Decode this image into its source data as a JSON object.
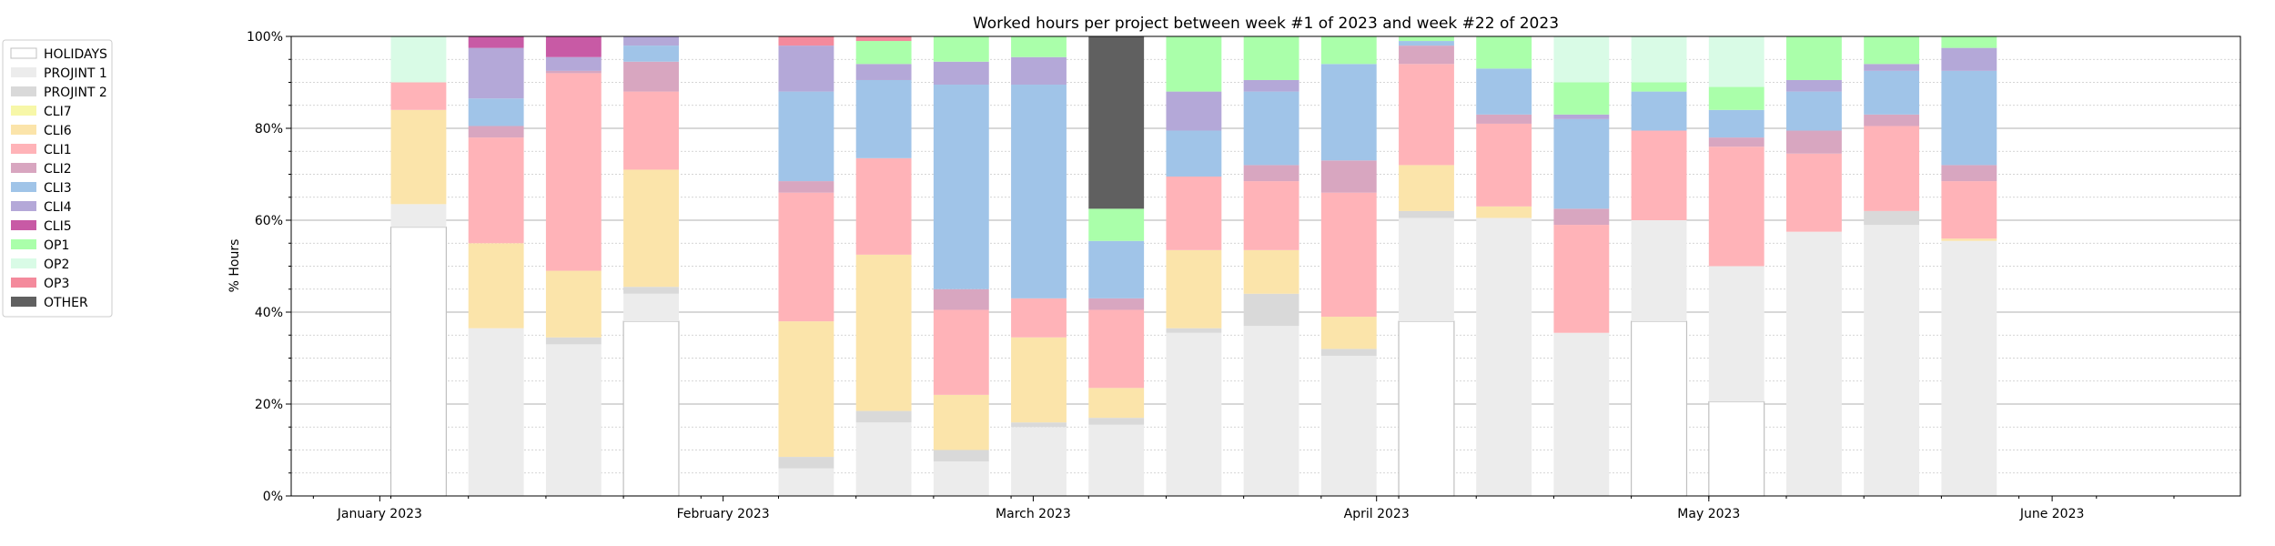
{
  "chart_data": {
    "type": "bar",
    "stacked": true,
    "title": "Worked hours per project between week #1 of 2023 and week #22 of 2023",
    "ylabel": "% Hours",
    "xlabel": "",
    "ylim": [
      0,
      100
    ],
    "y_ticks": [
      "0%",
      "20%",
      "40%",
      "60%",
      "80%",
      "100%"
    ],
    "x_range": [
      "2022-12-24",
      "2023-06-18"
    ],
    "x_ticks": [
      {
        "date": "2023-01-01",
        "label": "January 2023"
      },
      {
        "date": "2023-02-01",
        "label": "February 2023"
      },
      {
        "date": "2023-03-01",
        "label": "March 2023"
      },
      {
        "date": "2023-04-01",
        "label": "April 2023"
      },
      {
        "date": "2023-05-01",
        "label": "May 2023"
      },
      {
        "date": "2023-06-01",
        "label": "June 2023"
      }
    ],
    "grid": "horizontal",
    "legend_position": "outside-left",
    "series": [
      {
        "name": "HOLIDAYS",
        "color": "#ffffff",
        "stroke": "#c0c0c0"
      },
      {
        "name": "PROJINT 1",
        "color": "#ececec"
      },
      {
        "name": "PROJINT 2",
        "color": "#d9d9d9"
      },
      {
        "name": "CLI7",
        "color": "#f7f7a8"
      },
      {
        "name": "CLI6",
        "color": "#fbe4aa"
      },
      {
        "name": "CLI1",
        "color": "#ffb3b8"
      },
      {
        "name": "CLI2",
        "color": "#d8a6c0"
      },
      {
        "name": "CLI3",
        "color": "#a0c4e8"
      },
      {
        "name": "CLI4",
        "color": "#b4a8d8"
      },
      {
        "name": "CLI5",
        "color": "#c85aa5"
      },
      {
        "name": "OP1",
        "color": "#aaffaa"
      },
      {
        "name": "OP2",
        "color": "#d9fbe6"
      },
      {
        "name": "OP3",
        "color": "#f48a9c"
      },
      {
        "name": "OTHER",
        "color": "#606060"
      }
    ],
    "weeks": [
      {
        "week_start": "2023-01-02",
        "segments": [
          {
            "s": "HOLIDAYS",
            "v": 58.5
          },
          {
            "s": "PROJINT 1",
            "v": 5
          },
          {
            "s": "CLI6",
            "v": 20.5
          },
          {
            "s": "CLI1",
            "v": 6
          },
          {
            "s": "OP2",
            "v": 10
          }
        ]
      },
      {
        "week_start": "2023-01-09",
        "segments": [
          {
            "s": "PROJINT 1",
            "v": 36.5
          },
          {
            "s": "CLI6",
            "v": 18.5
          },
          {
            "s": "CLI1",
            "v": 23
          },
          {
            "s": "CLI2",
            "v": 2.5
          },
          {
            "s": "CLI3",
            "v": 6
          },
          {
            "s": "CLI4",
            "v": 11
          },
          {
            "s": "CLI5",
            "v": 2.5
          }
        ]
      },
      {
        "week_start": "2023-01-16",
        "segments": [
          {
            "s": "PROJINT 1",
            "v": 33
          },
          {
            "s": "PROJINT 2",
            "v": 1.5
          },
          {
            "s": "CLI6",
            "v": 14.5
          },
          {
            "s": "CLI1",
            "v": 43
          },
          {
            "s": "CLI2",
            "v": 0.5
          },
          {
            "s": "CLI4",
            "v": 3
          },
          {
            "s": "CLI5",
            "v": 4.5
          }
        ]
      },
      {
        "week_start": "2023-01-23",
        "segments": [
          {
            "s": "HOLIDAYS",
            "v": 38
          },
          {
            "s": "PROJINT 1",
            "v": 6
          },
          {
            "s": "PROJINT 2",
            "v": 1.5
          },
          {
            "s": "CLI6",
            "v": 25.5
          },
          {
            "s": "CLI1",
            "v": 17
          },
          {
            "s": "CLI2",
            "v": 6.5
          },
          {
            "s": "CLI3",
            "v": 3.5
          },
          {
            "s": "CLI4",
            "v": 2
          }
        ]
      },
      {
        "week_start": "2023-02-06",
        "segments": [
          {
            "s": "PROJINT 1",
            "v": 6
          },
          {
            "s": "PROJINT 2",
            "v": 2.5
          },
          {
            "s": "CLI6",
            "v": 29.5
          },
          {
            "s": "CLI1",
            "v": 28
          },
          {
            "s": "CLI2",
            "v": 2.5
          },
          {
            "s": "CLI3",
            "v": 19.5
          },
          {
            "s": "CLI4",
            "v": 10
          },
          {
            "s": "OP3",
            "v": 2
          }
        ]
      },
      {
        "week_start": "2023-02-13",
        "segments": [
          {
            "s": "PROJINT 1",
            "v": 16
          },
          {
            "s": "PROJINT 2",
            "v": 2.5
          },
          {
            "s": "CLI6",
            "v": 34
          },
          {
            "s": "CLI1",
            "v": 21
          },
          {
            "s": "CLI3",
            "v": 17
          },
          {
            "s": "CLI4",
            "v": 3.5
          },
          {
            "s": "OP1",
            "v": 5
          },
          {
            "s": "OP3",
            "v": 1
          }
        ]
      },
      {
        "week_start": "2023-02-20",
        "segments": [
          {
            "s": "PROJINT 1",
            "v": 7.5
          },
          {
            "s": "PROJINT 2",
            "v": 2.5
          },
          {
            "s": "CLI6",
            "v": 12
          },
          {
            "s": "CLI1",
            "v": 18.5
          },
          {
            "s": "CLI2",
            "v": 4.5
          },
          {
            "s": "CLI3",
            "v": 44.5
          },
          {
            "s": "CLI4",
            "v": 5
          },
          {
            "s": "OP1",
            "v": 5.5
          }
        ]
      },
      {
        "week_start": "2023-02-27",
        "segments": [
          {
            "s": "PROJINT 1",
            "v": 15
          },
          {
            "s": "PROJINT 2",
            "v": 1
          },
          {
            "s": "CLI6",
            "v": 18.5
          },
          {
            "s": "CLI1",
            "v": 8.5
          },
          {
            "s": "CLI3",
            "v": 46.5
          },
          {
            "s": "CLI4",
            "v": 6
          },
          {
            "s": "OP1",
            "v": 4.5
          }
        ]
      },
      {
        "week_start": "2023-03-06",
        "segments": [
          {
            "s": "PROJINT 1",
            "v": 15.5
          },
          {
            "s": "PROJINT 2",
            "v": 1.5
          },
          {
            "s": "CLI6",
            "v": 6.5
          },
          {
            "s": "CLI1",
            "v": 17
          },
          {
            "s": "CLI2",
            "v": 2.5
          },
          {
            "s": "CLI3",
            "v": 12.5
          },
          {
            "s": "OP1",
            "v": 7
          },
          {
            "s": "OTHER",
            "v": 37.5
          }
        ]
      },
      {
        "week_start": "2023-03-13",
        "segments": [
          {
            "s": "PROJINT 1",
            "v": 35.5
          },
          {
            "s": "PROJINT 2",
            "v": 1
          },
          {
            "s": "CLI6",
            "v": 17
          },
          {
            "s": "CLI1",
            "v": 16
          },
          {
            "s": "CLI3",
            "v": 10
          },
          {
            "s": "CLI4",
            "v": 8.5
          },
          {
            "s": "OP1",
            "v": 12
          }
        ]
      },
      {
        "week_start": "2023-03-20",
        "segments": [
          {
            "s": "PROJINT 1",
            "v": 37
          },
          {
            "s": "PROJINT 2",
            "v": 7
          },
          {
            "s": "CLI6",
            "v": 9.5
          },
          {
            "s": "CLI1",
            "v": 15
          },
          {
            "s": "CLI2",
            "v": 3.5
          },
          {
            "s": "CLI3",
            "v": 16
          },
          {
            "s": "CLI4",
            "v": 2.5
          },
          {
            "s": "OP1",
            "v": 9.5
          }
        ]
      },
      {
        "week_start": "2023-03-27",
        "segments": [
          {
            "s": "PROJINT 1",
            "v": 30.5
          },
          {
            "s": "PROJINT 2",
            "v": 1.5
          },
          {
            "s": "CLI6",
            "v": 7
          },
          {
            "s": "CLI1",
            "v": 27
          },
          {
            "s": "CLI2",
            "v": 7
          },
          {
            "s": "CLI3",
            "v": 21
          },
          {
            "s": "OP1",
            "v": 6
          }
        ]
      },
      {
        "week_start": "2023-04-03",
        "segments": [
          {
            "s": "HOLIDAYS",
            "v": 38
          },
          {
            "s": "PROJINT 1",
            "v": 22.5
          },
          {
            "s": "PROJINT 2",
            "v": 1.5
          },
          {
            "s": "CLI6",
            "v": 10
          },
          {
            "s": "CLI1",
            "v": 22
          },
          {
            "s": "CLI2",
            "v": 4
          },
          {
            "s": "CLI3",
            "v": 1
          },
          {
            "s": "OP1",
            "v": 1
          }
        ]
      },
      {
        "week_start": "2023-04-10",
        "segments": [
          {
            "s": "PROJINT 1",
            "v": 60.5
          },
          {
            "s": "CLI6",
            "v": 2.5
          },
          {
            "s": "CLI1",
            "v": 18
          },
          {
            "s": "CLI2",
            "v": 2
          },
          {
            "s": "CLI3",
            "v": 10
          },
          {
            "s": "OP1",
            "v": 7
          }
        ]
      },
      {
        "week_start": "2023-04-17",
        "segments": [
          {
            "s": "PROJINT 1",
            "v": 35.5
          },
          {
            "s": "CLI1",
            "v": 23.5
          },
          {
            "s": "CLI2",
            "v": 3.5
          },
          {
            "s": "CLI3",
            "v": 19.5
          },
          {
            "s": "CLI4",
            "v": 1
          },
          {
            "s": "OP1",
            "v": 7
          },
          {
            "s": "OP2",
            "v": 10
          }
        ]
      },
      {
        "week_start": "2023-04-24",
        "segments": [
          {
            "s": "HOLIDAYS",
            "v": 38
          },
          {
            "s": "PROJINT 1",
            "v": 22
          },
          {
            "s": "CLI1",
            "v": 19.5
          },
          {
            "s": "CLI3",
            "v": 8.5
          },
          {
            "s": "OP1",
            "v": 2
          },
          {
            "s": "OP2",
            "v": 10
          }
        ]
      },
      {
        "week_start": "2023-05-01",
        "segments": [
          {
            "s": "HOLIDAYS",
            "v": 20.5
          },
          {
            "s": "PROJINT 1",
            "v": 29.5
          },
          {
            "s": "CLI1",
            "v": 26
          },
          {
            "s": "CLI2",
            "v": 2
          },
          {
            "s": "CLI3",
            "v": 6
          },
          {
            "s": "OP1",
            "v": 5
          },
          {
            "s": "OP2",
            "v": 11
          }
        ]
      },
      {
        "week_start": "2023-05-08",
        "segments": [
          {
            "s": "PROJINT 1",
            "v": 57.5
          },
          {
            "s": "CLI1",
            "v": 17
          },
          {
            "s": "CLI2",
            "v": 5
          },
          {
            "s": "CLI3",
            "v": 8.5
          },
          {
            "s": "CLI4",
            "v": 2.5
          },
          {
            "s": "OP1",
            "v": 9.5
          }
        ]
      },
      {
        "week_start": "2023-05-15",
        "segments": [
          {
            "s": "PROJINT 1",
            "v": 59
          },
          {
            "s": "PROJINT 2",
            "v": 3
          },
          {
            "s": "CLI1",
            "v": 18.5
          },
          {
            "s": "CLI2",
            "v": 2.5
          },
          {
            "s": "CLI3",
            "v": 9.5
          },
          {
            "s": "CLI4",
            "v": 1.5
          },
          {
            "s": "OP1",
            "v": 6
          }
        ]
      },
      {
        "week_start": "2023-05-22",
        "segments": [
          {
            "s": "PROJINT 1",
            "v": 55.5
          },
          {
            "s": "CLI6",
            "v": 0.5
          },
          {
            "s": "CLI1",
            "v": 12.5
          },
          {
            "s": "CLI2",
            "v": 3.5
          },
          {
            "s": "CLI3",
            "v": 20.5
          },
          {
            "s": "CLI4",
            "v": 5
          },
          {
            "s": "OP1",
            "v": 2.5
          }
        ]
      }
    ]
  }
}
